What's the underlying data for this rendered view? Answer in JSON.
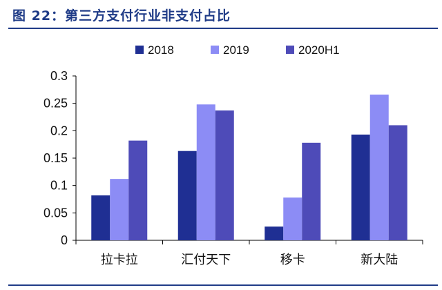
{
  "header": {
    "title": "图 22：第三方支付行业非支付占比"
  },
  "colors": {
    "title": "#1f3b87",
    "axis": "#000000"
  },
  "chart_data": {
    "type": "bar",
    "categories": [
      "拉卡拉",
      "汇付天下",
      "移卡",
      "新大陆"
    ],
    "series": [
      {
        "name": "2018",
        "color": "#1f2f93",
        "values": [
          0.082,
          0.163,
          0.025,
          0.193
        ]
      },
      {
        "name": "2019",
        "color": "#8c8cf5",
        "values": [
          0.112,
          0.248,
          0.078,
          0.266
        ]
      },
      {
        "name": "2020H1",
        "color": "#4e4bb8",
        "values": [
          0.182,
          0.237,
          0.178,
          0.21
        ]
      }
    ],
    "yticks": [
      "0",
      "0.05",
      "0.1",
      "0.15",
      "0.2",
      "0.25",
      "0.3"
    ],
    "ylim": [
      0,
      0.3
    ],
    "legend_position": "top",
    "grid": false
  }
}
